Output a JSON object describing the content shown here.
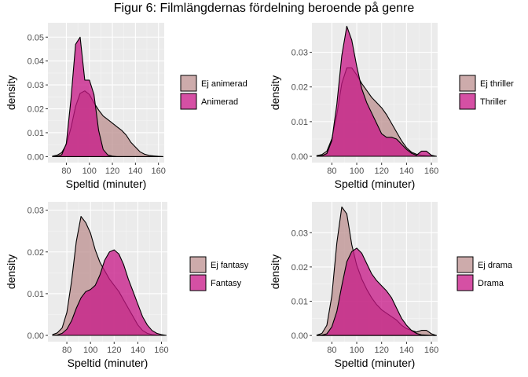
{
  "figure_title": "Figur 6: Filmlängdernas fördelning beroende på genre",
  "colors": {
    "panel_background": "#ebebeb",
    "grid_major": "#ffffff",
    "group_not": "#bc8f8f",
    "group_is": "#c71585"
  },
  "chart_data": [
    {
      "type": "area",
      "xlabel": "Speltid (minuter)",
      "ylabel": "density",
      "xlim": [
        64,
        165
      ],
      "ylim": [
        -0.0025,
        0.056
      ],
      "x_ticks": [
        80,
        100,
        120,
        140,
        160
      ],
      "y_ticks": [
        0.0,
        0.01,
        0.02,
        0.03,
        0.04,
        0.05
      ],
      "y_tick_labels": [
        "0.00",
        "0.01",
        "0.02",
        "0.03",
        "0.04",
        "0.05"
      ],
      "grid": true,
      "legend_position": "right",
      "x": [
        68,
        72,
        76,
        80,
        84,
        88,
        92,
        96,
        100,
        104,
        108,
        112,
        116,
        120,
        124,
        128,
        132,
        136,
        140,
        144,
        148,
        152,
        156,
        160,
        164
      ],
      "series": [
        {
          "name": "Ej animerad",
          "values": [
            0.0002,
            0.0006,
            0.0017,
            0.005,
            0.012,
            0.021,
            0.0265,
            0.0275,
            0.026,
            0.0225,
            0.0195,
            0.017,
            0.0155,
            0.014,
            0.0125,
            0.011,
            0.009,
            0.006,
            0.004,
            0.002,
            0.001,
            0.0005,
            0.0003,
            0.0001,
            0.0
          ]
        },
        {
          "name": "Animerad",
          "values": [
            0.0,
            0.0001,
            0.0008,
            0.0055,
            0.024,
            0.047,
            0.05,
            0.032,
            0.032,
            0.026,
            0.011,
            0.003,
            0.0007,
            0.0002,
            0.0,
            0.0,
            0.0,
            0.0,
            0.0,
            0.0,
            0.0,
            0.0,
            0.0,
            0.0,
            0.0
          ]
        }
      ]
    },
    {
      "type": "area",
      "xlabel": "Speltid (minuter)",
      "ylabel": "density",
      "xlim": [
        64,
        165
      ],
      "ylim": [
        -0.0018,
        0.0385
      ],
      "x_ticks": [
        80,
        100,
        120,
        140,
        160
      ],
      "y_ticks": [
        0.0,
        0.01,
        0.02,
        0.03
      ],
      "y_tick_labels": [
        "0.00",
        "0.01",
        "0.02",
        "0.03"
      ],
      "grid": true,
      "legend_position": "right",
      "x": [
        68,
        72,
        76,
        80,
        84,
        88,
        92,
        96,
        100,
        104,
        108,
        112,
        116,
        120,
        124,
        128,
        132,
        136,
        140,
        144,
        148,
        152,
        156,
        160,
        164
      ],
      "series": [
        {
          "name": "Ej thriller",
          "values": [
            0.0002,
            0.0005,
            0.0015,
            0.005,
            0.012,
            0.021,
            0.0255,
            0.0255,
            0.0235,
            0.021,
            0.019,
            0.017,
            0.0155,
            0.014,
            0.012,
            0.0095,
            0.007,
            0.0045,
            0.0025,
            0.0012,
            0.0006,
            0.0003,
            0.0002,
            0.0001,
            0.0
          ]
        },
        {
          "name": "Thriller",
          "values": [
            0.0,
            0.0002,
            0.0008,
            0.0045,
            0.015,
            0.029,
            0.0375,
            0.0335,
            0.026,
            0.0195,
            0.0155,
            0.0125,
            0.0095,
            0.0065,
            0.0055,
            0.0055,
            0.005,
            0.0035,
            0.002,
            0.0009,
            0.0003,
            0.0015,
            0.0015,
            0.0003,
            0.0
          ]
        }
      ]
    },
    {
      "type": "area",
      "xlabel": "Speltid (minuter)",
      "ylabel": "density",
      "xlim": [
        64,
        165
      ],
      "ylim": [
        -0.0015,
        0.032
      ],
      "x_ticks": [
        80,
        100,
        120,
        140,
        160
      ],
      "y_ticks": [
        0.0,
        0.01,
        0.02,
        0.03
      ],
      "y_tick_labels": [
        "0.00",
        "0.01",
        "0.02",
        "0.03"
      ],
      "grid": true,
      "legend_position": "right",
      "x": [
        68,
        72,
        76,
        80,
        84,
        88,
        92,
        96,
        100,
        104,
        108,
        112,
        116,
        120,
        124,
        128,
        132,
        136,
        140,
        144,
        148,
        152,
        156,
        160,
        164
      ],
      "series": [
        {
          "name": "Ej fantasy",
          "values": [
            0.0002,
            0.0006,
            0.0018,
            0.0055,
            0.013,
            0.0225,
            0.0285,
            0.027,
            0.0245,
            0.0205,
            0.0175,
            0.0155,
            0.0135,
            0.012,
            0.0105,
            0.0085,
            0.0065,
            0.0045,
            0.0025,
            0.0012,
            0.0005,
            0.0002,
            0.0001,
            0.0,
            0.0
          ]
        },
        {
          "name": "Fantasy",
          "values": [
            0.0,
            0.0001,
            0.0005,
            0.0015,
            0.0035,
            0.0065,
            0.009,
            0.0105,
            0.011,
            0.012,
            0.0145,
            0.018,
            0.02,
            0.0205,
            0.0195,
            0.017,
            0.0135,
            0.0105,
            0.0075,
            0.0045,
            0.0025,
            0.0012,
            0.0005,
            0.0002,
            0.0
          ]
        }
      ]
    },
    {
      "type": "area",
      "xlabel": "Speltid (minuter)",
      "ylabel": "density",
      "xlim": [
        64,
        165
      ],
      "ylim": [
        -0.0018,
        0.039
      ],
      "x_ticks": [
        80,
        100,
        120,
        140,
        160
      ],
      "y_ticks": [
        0.0,
        0.01,
        0.02,
        0.03
      ],
      "y_tick_labels": [
        "0.00",
        "0.01",
        "0.02",
        "0.03"
      ],
      "grid": true,
      "legend_position": "right",
      "x": [
        68,
        72,
        76,
        80,
        84,
        88,
        92,
        96,
        100,
        104,
        108,
        112,
        116,
        120,
        124,
        128,
        132,
        136,
        140,
        144,
        148,
        152,
        156,
        160,
        164
      ],
      "series": [
        {
          "name": "Ej drama",
          "values": [
            0.0001,
            0.0006,
            0.003,
            0.0115,
            0.027,
            0.0375,
            0.0355,
            0.0265,
            0.0205,
            0.0165,
            0.0135,
            0.011,
            0.009,
            0.0075,
            0.0065,
            0.0055,
            0.0045,
            0.003,
            0.002,
            0.0015,
            0.001,
            0.0015,
            0.0015,
            0.0005,
            0.0
          ]
        },
        {
          "name": "Drama",
          "values": [
            0.0,
            0.0001,
            0.0005,
            0.0025,
            0.007,
            0.0145,
            0.0215,
            0.0245,
            0.0255,
            0.024,
            0.021,
            0.018,
            0.016,
            0.0145,
            0.013,
            0.011,
            0.008,
            0.005,
            0.003,
            0.0015,
            0.0006,
            0.0002,
            0.0001,
            0.0,
            0.0
          ]
        }
      ]
    }
  ]
}
